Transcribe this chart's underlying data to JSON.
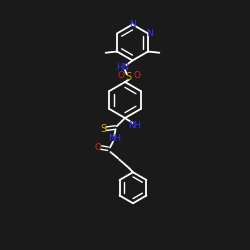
{
  "bg_color": "#1a1a1a",
  "bond_color": "#ffffff",
  "N_color": "#3333ff",
  "O_color": "#dd2222",
  "S_color": "#ccaa00",
  "figsize": [
    2.5,
    2.5
  ],
  "dpi": 100,
  "xlim": [
    0,
    10
  ],
  "ylim": [
    0,
    10
  ]
}
